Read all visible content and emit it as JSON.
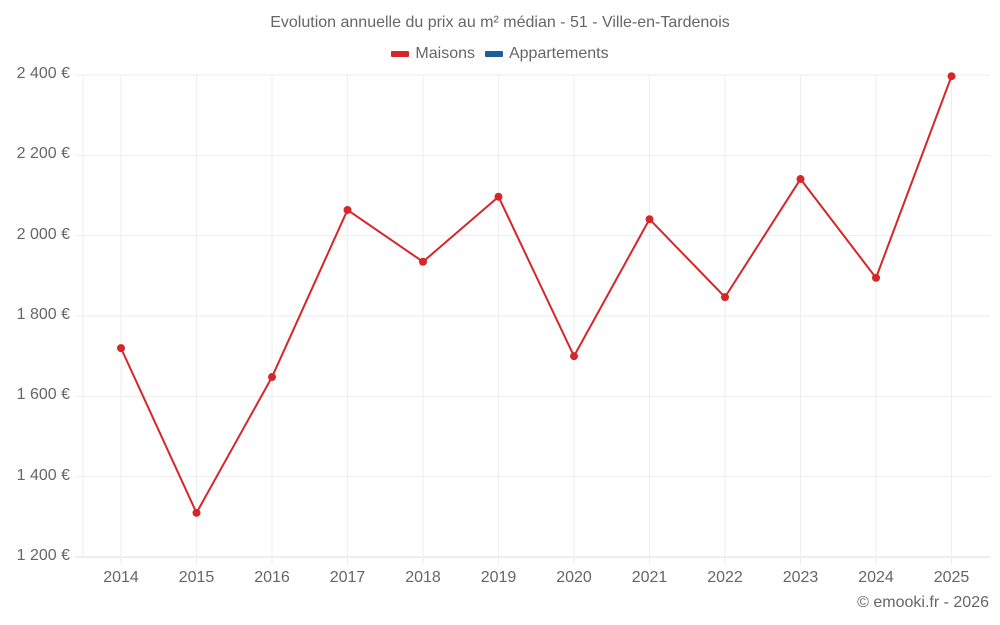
{
  "title": "Evolution annuelle du prix au m² médian - 51 - Ville-en-Tardenois",
  "legend": [
    {
      "label": "Maisons",
      "color": "#d62728"
    },
    {
      "label": "Appartements",
      "color": "#1f5f99"
    }
  ],
  "credit": "© emooki.fr - 2026",
  "colors": {
    "line": "#d62728",
    "grid": "#eeeeee",
    "axis": "#dddddd",
    "text": "#666666"
  },
  "chart_data": {
    "type": "line",
    "title": "Evolution annuelle du prix au m² médian - 51 - Ville-en-Tardenois",
    "xlabel": "",
    "ylabel": "",
    "categories": [
      "2014",
      "2015",
      "2016",
      "2017",
      "2018",
      "2019",
      "2020",
      "2021",
      "2022",
      "2023",
      "2024",
      "2025"
    ],
    "series": [
      {
        "name": "Maisons",
        "color": "#d62728",
        "values": [
          1720,
          1310,
          1648,
          2064,
          1935,
          2097,
          1700,
          2041,
          1847,
          2141,
          1895,
          2397
        ]
      },
      {
        "name": "Appartements",
        "color": "#1f5f99",
        "values": []
      }
    ],
    "ylim": [
      1200,
      2400
    ],
    "yticks": [
      1200,
      1400,
      1600,
      1800,
      2000,
      2200,
      2400
    ],
    "ytick_labels": [
      "1 200 €",
      "1 400 €",
      "1 600 €",
      "1 800 €",
      "2 000 €",
      "2 200 €",
      "2 400 €"
    ],
    "grid": true,
    "legend_position": "top"
  }
}
